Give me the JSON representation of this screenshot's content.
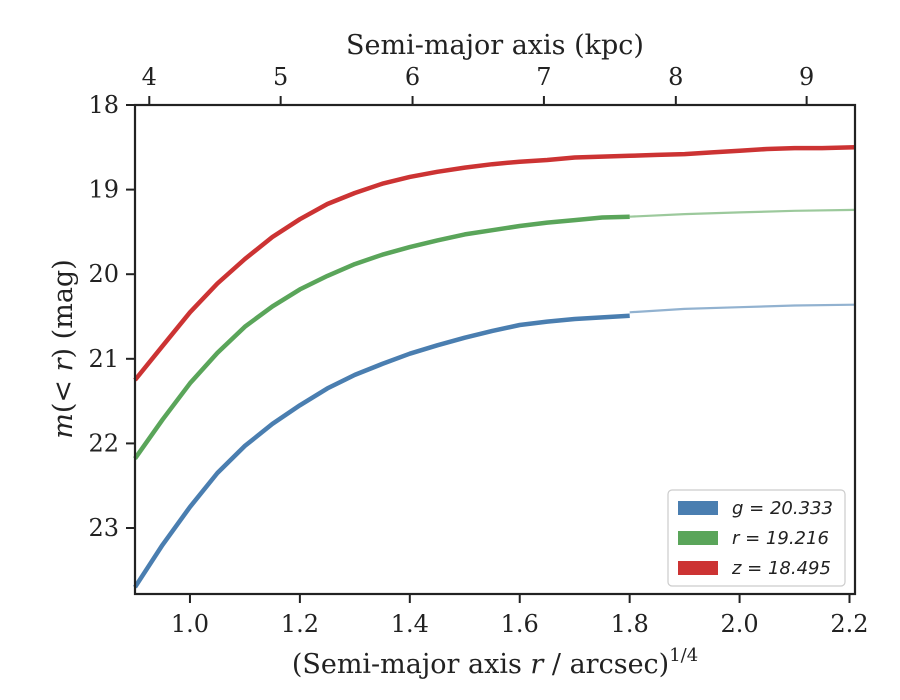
{
  "chart_data": {
    "type": "line",
    "xlabel": "(Semi-major axis r / arcsec)^1/4",
    "ylabel": "m(< r) (mag)",
    "top_xlabel": "Semi-major axis (kpc)",
    "xlim": [
      0.9,
      2.21
    ],
    "ylim": [
      23.78,
      18.0
    ],
    "y_inverted": true,
    "x_ticks": [
      1.0,
      1.2,
      1.4,
      1.6,
      1.8,
      2.0,
      2.2
    ],
    "x_tick_labels": [
      "1.0",
      "1.2",
      "1.4",
      "1.6",
      "1.8",
      "2.0",
      "2.2"
    ],
    "y_ticks": [
      18,
      19,
      20,
      21,
      22,
      23
    ],
    "y_tick_labels": [
      "18",
      "19",
      "20",
      "21",
      "22",
      "23"
    ],
    "top_ticks_x": [
      0.926,
      1.165,
      1.405,
      1.644,
      1.884,
      2.122
    ],
    "top_tick_labels": [
      "4",
      "5",
      "6",
      "7",
      "8",
      "9"
    ],
    "legend_position": "lower-right",
    "series": [
      {
        "name": "g = 20.333",
        "color": "#4a7eb0",
        "x": [
          0.9,
          0.95,
          1.0,
          1.05,
          1.1,
          1.15,
          1.2,
          1.25,
          1.3,
          1.35,
          1.4,
          1.45,
          1.5,
          1.55,
          1.6,
          1.65,
          1.7,
          1.75,
          1.8
        ],
        "y": [
          23.7,
          23.2,
          22.75,
          22.35,
          22.03,
          21.77,
          21.55,
          21.35,
          21.19,
          21.06,
          20.94,
          20.84,
          20.75,
          20.67,
          20.6,
          20.56,
          20.53,
          20.51,
          20.49
        ],
        "ext_x": [
          1.8,
          1.9,
          2.0,
          2.1,
          2.21
        ],
        "ext_y": [
          20.45,
          20.41,
          20.39,
          20.37,
          20.36
        ]
      },
      {
        "name": "r = 19.216",
        "color": "#5aa55a",
        "x": [
          0.9,
          0.95,
          1.0,
          1.05,
          1.1,
          1.15,
          1.2,
          1.25,
          1.3,
          1.35,
          1.4,
          1.45,
          1.5,
          1.55,
          1.6,
          1.65,
          1.7,
          1.75,
          1.8
        ],
        "y": [
          22.18,
          21.72,
          21.29,
          20.93,
          20.62,
          20.38,
          20.18,
          20.02,
          19.88,
          19.77,
          19.68,
          19.6,
          19.53,
          19.48,
          19.43,
          19.39,
          19.36,
          19.33,
          19.32
        ],
        "ext_x": [
          1.8,
          1.9,
          2.0,
          2.1,
          2.21
        ],
        "ext_y": [
          19.32,
          19.29,
          19.27,
          19.25,
          19.24
        ]
      },
      {
        "name": "z = 18.495",
        "color": "#cc3333",
        "x": [
          0.9,
          0.95,
          1.0,
          1.05,
          1.1,
          1.15,
          1.2,
          1.25,
          1.3,
          1.35,
          1.4,
          1.45,
          1.5,
          1.55,
          1.6,
          1.65,
          1.7,
          1.75,
          1.8,
          1.85,
          1.9,
          1.95,
          2.0,
          2.05,
          2.1,
          2.15,
          2.21
        ],
        "y": [
          21.25,
          20.85,
          20.45,
          20.11,
          19.82,
          19.56,
          19.35,
          19.17,
          19.04,
          18.93,
          18.85,
          18.79,
          18.74,
          18.7,
          18.67,
          18.65,
          18.62,
          18.61,
          18.6,
          18.59,
          18.58,
          18.56,
          18.54,
          18.52,
          18.51,
          18.51,
          18.5
        ],
        "ext_x": [],
        "ext_y": []
      }
    ]
  }
}
